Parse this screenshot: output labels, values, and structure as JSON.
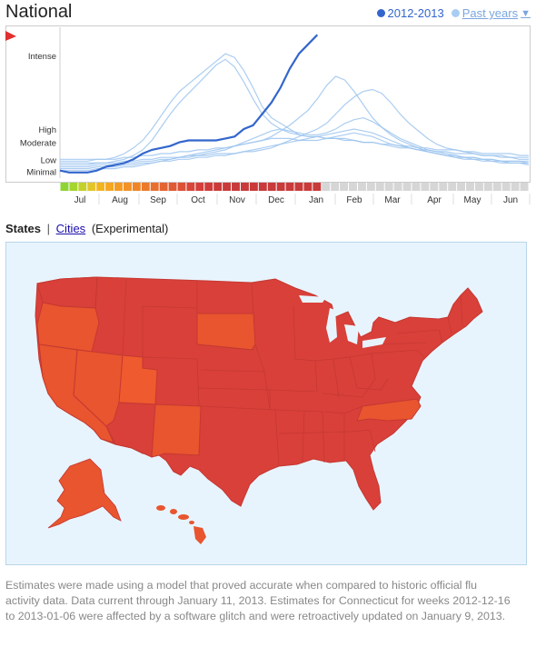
{
  "header": {
    "title": "National",
    "legend_current": "2012-2013",
    "legend_past": "Past years",
    "legend_past_arrow": "▼",
    "colors": {
      "current": "#3366cc",
      "past": "#99c4f0"
    }
  },
  "chart_data": {
    "type": "line",
    "x_ticks": [
      "Jul",
      "Aug",
      "Sep",
      "Oct",
      "Nov",
      "Dec",
      "Jan",
      "Feb",
      "Mar",
      "Apr",
      "May",
      "Jun"
    ],
    "y_levels": [
      "Intense",
      "High",
      "Moderate",
      "Low",
      "Minimal"
    ],
    "current_series": {
      "name": "2012-2013",
      "values": [
        0.4,
        0.3,
        0.3,
        0.3,
        0.4,
        0.6,
        0.7,
        0.8,
        1.0,
        1.3,
        1.5,
        1.6,
        1.7,
        1.9,
        2.0,
        2.0,
        2.0,
        2.0,
        2.1,
        2.2,
        2.6,
        2.8,
        3.4,
        4.0,
        4.8,
        5.8,
        6.6,
        7.1,
        7.6
      ]
    },
    "past_series": [
      {
        "values": [
          1.0,
          1.0,
          1.0,
          1.0,
          1.0,
          1.0,
          1.1,
          1.3,
          1.6,
          2.0,
          2.6,
          3.3,
          4.0,
          4.6,
          5.0,
          5.4,
          5.8,
          6.2,
          6.6,
          6.4,
          5.7,
          4.8,
          3.8,
          3.2,
          2.9,
          2.6,
          2.3,
          2.2,
          2.2,
          2.1,
          2.1,
          2.1,
          2.0,
          1.9,
          1.9,
          1.8,
          1.8,
          1.7,
          1.7,
          1.6,
          1.6,
          1.5,
          1.5,
          1.5,
          1.4,
          1.4,
          1.3,
          1.3,
          1.3,
          1.3,
          1.2,
          1.2
        ]
      },
      {
        "values": [
          0.8,
          0.8,
          0.8,
          0.8,
          0.8,
          0.8,
          0.9,
          1.0,
          1.2,
          1.5,
          2.0,
          2.7,
          3.4,
          4.0,
          4.5,
          5.0,
          5.5,
          6.0,
          6.3,
          5.9,
          5.1,
          4.2,
          3.4,
          2.9,
          2.6,
          2.4,
          2.3,
          2.2,
          2.2,
          2.1,
          2.1,
          2.0,
          2.0,
          1.9,
          1.9,
          1.8,
          1.7,
          1.6,
          1.6,
          1.5,
          1.5,
          1.4,
          1.4,
          1.3,
          1.3,
          1.3,
          1.2,
          1.2,
          1.2,
          1.1,
          1.1,
          1.1
        ]
      },
      {
        "values": [
          0.7,
          0.7,
          0.7,
          0.7,
          0.8,
          0.8,
          0.8,
          0.9,
          0.9,
          1.0,
          1.0,
          1.1,
          1.1,
          1.1,
          1.2,
          1.2,
          1.2,
          1.3,
          1.3,
          1.3,
          1.4,
          1.4,
          1.5,
          1.6,
          1.8,
          2.0,
          2.2,
          2.4,
          2.6,
          2.9,
          3.4,
          3.9,
          4.3,
          4.6,
          4.7,
          4.5,
          4.0,
          3.4,
          2.9,
          2.5,
          2.1,
          1.8,
          1.6,
          1.5,
          1.4,
          1.3,
          1.2,
          1.2,
          1.1,
          1.1,
          1.0,
          1.0
        ]
      },
      {
        "values": [
          0.6,
          0.6,
          0.6,
          0.6,
          0.7,
          0.7,
          0.7,
          0.8,
          0.8,
          0.9,
          0.9,
          1.0,
          1.0,
          1.1,
          1.1,
          1.2,
          1.3,
          1.4,
          1.5,
          1.7,
          1.9,
          2.1,
          2.3,
          2.5,
          2.6,
          2.5,
          2.4,
          2.3,
          2.3,
          2.4,
          2.6,
          2.9,
          3.1,
          3.2,
          3.0,
          2.7,
          2.4,
          2.1,
          1.9,
          1.7,
          1.5,
          1.4,
          1.3,
          1.2,
          1.1,
          1.1,
          1.0,
          1.0,
          0.9,
          0.9,
          0.9,
          0.8
        ]
      },
      {
        "values": [
          0.5,
          0.5,
          0.5,
          0.5,
          0.6,
          0.6,
          0.6,
          0.7,
          0.7,
          0.8,
          0.8,
          0.9,
          0.9,
          1.0,
          1.0,
          1.1,
          1.1,
          1.2,
          1.2,
          1.3,
          1.4,
          1.5,
          1.6,
          1.7,
          1.8,
          1.9,
          2.0,
          2.1,
          2.2,
          2.3,
          2.4,
          2.5,
          2.6,
          2.5,
          2.4,
          2.2,
          2.0,
          1.8,
          1.6,
          1.5,
          1.4,
          1.3,
          1.2,
          1.1,
          1.1,
          1.0,
          1.0,
          0.9,
          0.9,
          0.8,
          0.8,
          0.8
        ]
      },
      {
        "values": [
          0.9,
          0.9,
          0.9,
          0.9,
          1.0,
          1.0,
          1.0,
          1.1,
          1.1,
          1.2,
          1.2,
          1.3,
          1.3,
          1.4,
          1.4,
          1.5,
          1.5,
          1.6,
          1.6,
          1.7,
          1.8,
          1.9,
          2.0,
          2.2,
          2.5,
          2.8,
          3.2,
          3.6,
          4.2,
          4.9,
          5.4,
          5.2,
          4.6,
          3.9,
          3.2,
          2.7,
          2.3,
          2.0,
          1.8,
          1.6,
          1.4,
          1.3,
          1.2,
          1.1,
          1.0,
          1.0,
          0.9,
          0.9,
          0.8,
          0.8,
          0.8,
          0.7
        ]
      },
      {
        "values": [
          0.4,
          0.4,
          0.4,
          0.4,
          0.5,
          0.5,
          0.5,
          0.6,
          0.6,
          0.7,
          0.8,
          0.9,
          1.0,
          1.1,
          1.2,
          1.3,
          1.4,
          1.5,
          1.6,
          1.7,
          1.8,
          1.9,
          2.0,
          2.1,
          2.1,
          2.1,
          2.0,
          2.0,
          2.0,
          2.1,
          2.2,
          2.3,
          2.4,
          2.3,
          2.2,
          2.0,
          1.8,
          1.7,
          1.6,
          1.5,
          1.4,
          1.3,
          1.2,
          1.2,
          1.1,
          1.1,
          1.0,
          1.0,
          0.9,
          0.9,
          0.9,
          0.9
        ]
      }
    ],
    "activity_bar": [
      "#8ed435",
      "#a3d62e",
      "#c4d12a",
      "#e3c52a",
      "#f2b51f",
      "#f5a623",
      "#f59a23",
      "#f49025",
      "#f08528",
      "#ec7a2b",
      "#e86f2e",
      "#e46431",
      "#e05a33",
      "#dc5036",
      "#d84639",
      "#d43f3b",
      "#cf3b3b",
      "#ca3a3a",
      "#c93a3a",
      "#c93a3a",
      "#c93a3a",
      "#c93a3a",
      "#c93a3a",
      "#c93a3a",
      "#c93a3a",
      "#c93a3a",
      "#c93a3a",
      "#c93a3a",
      "#c93a3a"
    ]
  },
  "tabs": {
    "states": "States",
    "sep": "|",
    "cities": "Cities",
    "experimental": "(Experimental)"
  },
  "map": {
    "colors": {
      "intense": "#d9403a",
      "high": "#e8552e",
      "water": "#e8f4fd"
    }
  },
  "footnote": "Estimates were made using a model that proved accurate when compared to historic official flu activity data. Data current through January 11, 2013. Estimates for Connecticut for weeks 2012-12-16 to 2013-01-06 were affected by a software glitch and were retroactively updated on January 9, 2013."
}
